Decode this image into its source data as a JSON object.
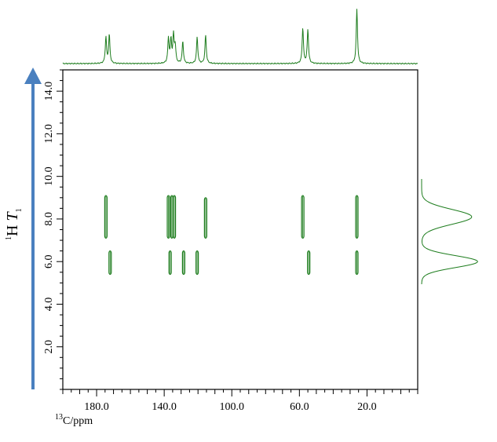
{
  "chart_data": {
    "type": "2D NMR correlation plot",
    "x_axis": {
      "label_sup": "13",
      "label_main": "C/ppm",
      "reversed": true,
      "range": [
        -10,
        200
      ],
      "ticks": [
        180.0,
        140.0,
        100.0,
        60.0,
        20.0
      ],
      "tick_labels": [
        "180.0",
        "140.0",
        "100.0",
        "60.0",
        "20.0"
      ],
      "minor_step": 5
    },
    "y_axis": {
      "label_sup": "1",
      "label_main": "H",
      "label_var": "T",
      "label_sub": "1",
      "range": [
        0,
        15
      ],
      "ticks": [
        2.0,
        4.0,
        6.0,
        8.0,
        10.0,
        12.0,
        14.0
      ],
      "tick_labels": [
        "2.0",
        "4.0",
        "6.0",
        "8.0",
        "10.0",
        "12.0",
        "14.0"
      ],
      "minor_step": 0.5
    },
    "colors": {
      "peaks": "#1e7d1e",
      "arrow": "#4a80bf",
      "frame": "#000000"
    },
    "cross_peaks": [
      {
        "x": 174.5,
        "y_min": 7.1,
        "y_max": 9.1
      },
      {
        "x": 172.0,
        "y_min": 5.4,
        "y_max": 6.5
      },
      {
        "x": 137.5,
        "y_min": 7.1,
        "y_max": 9.1
      },
      {
        "x": 135.5,
        "y_min": 7.1,
        "y_max": 9.1
      },
      {
        "x": 136.5,
        "y_min": 5.4,
        "y_max": 6.5
      },
      {
        "x": 134.0,
        "y_min": 7.1,
        "y_max": 9.1
      },
      {
        "x": 128.5,
        "y_min": 5.4,
        "y_max": 6.5
      },
      {
        "x": 120.5,
        "y_min": 5.4,
        "y_max": 6.5
      },
      {
        "x": 115.5,
        "y_min": 7.1,
        "y_max": 9.0
      },
      {
        "x": 58.0,
        "y_min": 7.1,
        "y_max": 9.1
      },
      {
        "x": 54.5,
        "y_min": 5.4,
        "y_max": 6.5
      },
      {
        "x": 26.0,
        "y_min": 7.1,
        "y_max": 9.1
      },
      {
        "x": 26.0,
        "y_min": 5.4,
        "y_max": 6.5
      }
    ],
    "top_projection_peaks": [
      {
        "x": 174.5,
        "h": 0.48
      },
      {
        "x": 172.5,
        "h": 0.52
      },
      {
        "x": 137.5,
        "h": 0.45
      },
      {
        "x": 136.0,
        "h": 0.42
      },
      {
        "x": 134.5,
        "h": 0.5
      },
      {
        "x": 133.5,
        "h": 0.3
      },
      {
        "x": 129.0,
        "h": 0.4
      },
      {
        "x": 120.5,
        "h": 0.48
      },
      {
        "x": 115.5,
        "h": 0.52
      },
      {
        "x": 58.0,
        "h": 0.65
      },
      {
        "x": 55.0,
        "h": 0.62
      },
      {
        "x": 26.0,
        "h": 1.0
      }
    ],
    "right_projection_peaks": [
      {
        "y": 8.1,
        "w": 0.85,
        "sigma": 0.35
      },
      {
        "y": 6.0,
        "w": 0.95,
        "sigma": 0.28
      }
    ]
  }
}
